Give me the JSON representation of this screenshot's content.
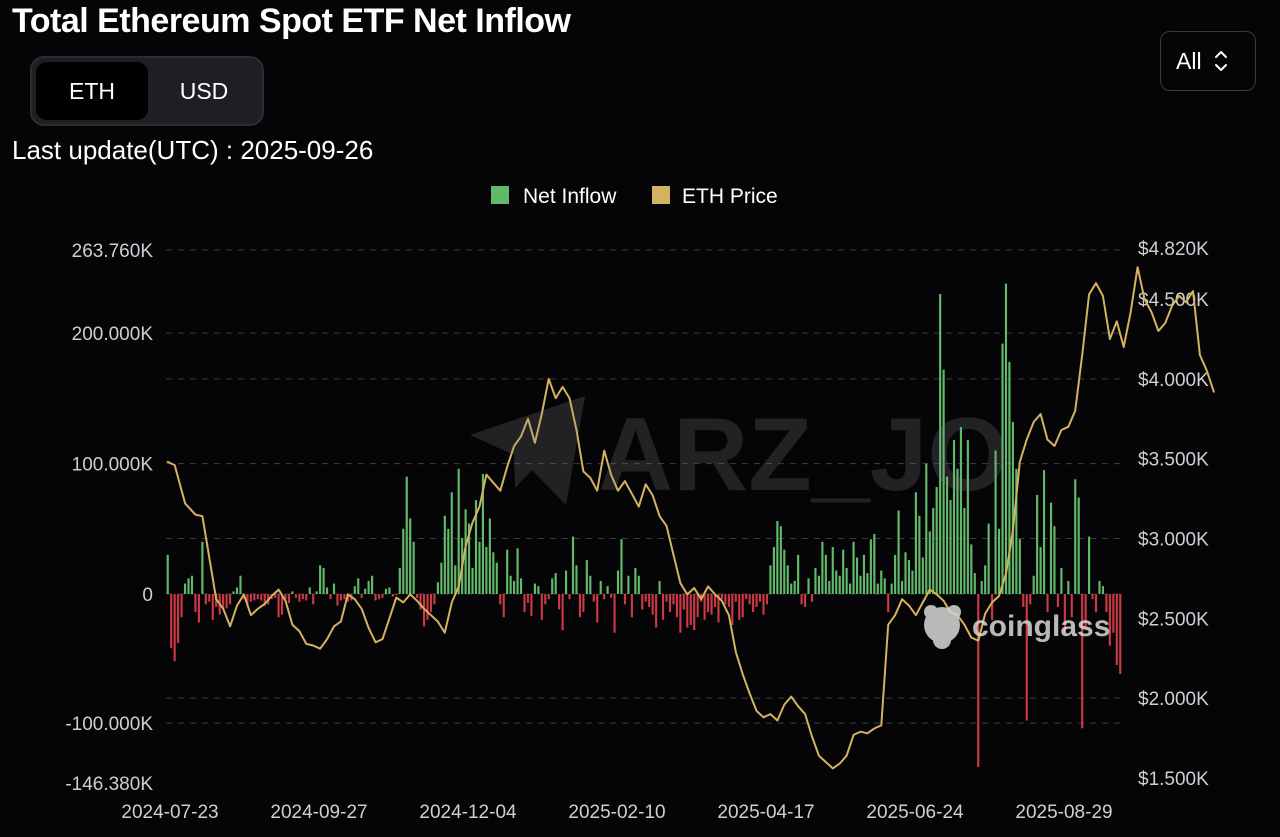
{
  "header": {
    "title": "Total Ethereum Spot ETF Net Inflow",
    "unit_options": [
      "ETH",
      "USD"
    ],
    "selected_unit": "ETH",
    "range_select": "All",
    "last_update": "Last update(UTC) : 2025-09-26"
  },
  "watermarks": {
    "center": "ARZ_JO",
    "brand": "coinglass"
  },
  "colors": {
    "background": "#050507",
    "inflow_positive": "#62b96a",
    "inflow_negative": "#cc3843",
    "price_line": "#d4b25f",
    "grid": "#3c3c40",
    "axis_text": "#cfcfd3"
  },
  "chart_data": {
    "type": "bar",
    "legend": [
      {
        "name": "Net Inflow",
        "color": "#62b96a"
      },
      {
        "name": "ETH Price",
        "color": "#d4b25f"
      }
    ],
    "legend_position": "top-center",
    "grid": "horizontal dashed",
    "y_left": {
      "ticks": [
        263760,
        200000,
        100000,
        0,
        -100000,
        -146380
      ],
      "tick_labels": [
        "263.760K",
        "200.000K",
        "100.000K",
        "0",
        "-100.000K",
        "-146.380K"
      ],
      "range": [
        -146380,
        263760
      ]
    },
    "y_right": {
      "ticks": [
        4820,
        4500,
        4000,
        3500,
        3000,
        2500,
        2000,
        1500
      ],
      "tick_labels": [
        "$4.820K",
        "$4.500K",
        "$4.000K",
        "$3.500K",
        "$3.000K",
        "$2.500K",
        "$2.000K",
        "$1.500K"
      ],
      "range": [
        1500,
        4820
      ]
    },
    "x_tick_labels": [
      "2024-07-23",
      "2024-09-27",
      "2024-12-04",
      "2025-02-10",
      "2025-04-17",
      "2025-06-24",
      "2025-08-29"
    ],
    "series": [
      {
        "name": "Net Inflow",
        "axis": "left",
        "note": "daily values in ETH, one bar per trading day",
        "values": [
          30000,
          -42000,
          -52000,
          -38000,
          -18000,
          8000,
          12000,
          14000,
          -14000,
          -22000,
          40000,
          -8000,
          -6000,
          -20000,
          -10000,
          -16000,
          -12000,
          -11000,
          -8000,
          2000,
          5000,
          14000,
          -4000,
          -9000,
          -6000,
          -5000,
          -4000,
          -5000,
          -9000,
          -8000,
          -4000,
          -3000,
          -18000,
          -16000,
          -4000,
          -7000,
          2000,
          -3000,
          -6000,
          -4000,
          -5000,
          5000,
          -8000,
          2000,
          22000,
          20000,
          5000,
          -4000,
          8000,
          -9000,
          -5000,
          -4000,
          -6000,
          -5000,
          6000,
          12000,
          -3000,
          4000,
          10000,
          14000,
          -5000,
          -4000,
          -3000,
          4000,
          5000,
          -2000,
          -1000,
          20000,
          50000,
          90000,
          58000,
          40000,
          -3000,
          -12000,
          -25000,
          -20000,
          -14000,
          -8000,
          9000,
          24000,
          60000,
          50000,
          78000,
          22000,
          96000,
          43000,
          65000,
          54000,
          20000,
          72000,
          40000,
          92000,
          36000,
          58000,
          32000,
          24000,
          -8000,
          -18000,
          34000,
          14000,
          10000,
          35000,
          12000,
          -14000,
          -7000,
          -17000,
          8000,
          6000,
          -20000,
          -8000,
          -4000,
          12000,
          16000,
          -12000,
          -28000,
          18000,
          -4000,
          44000,
          22000,
          -18000,
          -14000,
          26000,
          14000,
          -6000,
          -22000,
          10000,
          -4000,
          6000,
          -3000,
          -30000,
          18000,
          42000,
          -8000,
          14000,
          -18000,
          20000,
          14000,
          -12000,
          -6000,
          -10000,
          -16000,
          -26000,
          10000,
          -20000,
          -6000,
          -14000,
          -8000,
          -18000,
          -30000,
          -12000,
          -26000,
          -24000,
          -28000,
          -18000,
          -6000,
          -20000,
          -14000,
          -16000,
          -10000,
          -22000,
          -4000,
          -8000,
          -10000,
          -24000,
          -6000,
          -20000,
          -18000,
          -4000,
          -8000,
          -14000,
          -10000,
          -6000,
          -16000,
          -8000,
          22000,
          36000,
          56000,
          52000,
          34000,
          22000,
          8000,
          10000,
          30000,
          -8000,
          -10000,
          12000,
          -6000,
          20000,
          14000,
          40000,
          30000,
          10000,
          36000,
          18000,
          14000,
          34000,
          20000,
          8000,
          40000,
          28000,
          14000,
          30000,
          16000,
          42000,
          46000,
          8000,
          18000,
          12000,
          -14000,
          8000,
          30000,
          64000,
          10000,
          32000,
          26000,
          18000,
          78000,
          60000,
          28000,
          100000,
          48000,
          66000,
          82000,
          230000,
          172000,
          90000,
          72000,
          118000,
          96000,
          128000,
          66000,
          118000,
          38000,
          16000,
          -134000,
          10000,
          22000,
          54000,
          -20000,
          110000,
          50000,
          192000,
          238000,
          178000,
          132000,
          96000,
          42000,
          -10000,
          -98000,
          -8000,
          14000,
          76000,
          36000,
          95000,
          -14000,
          70000,
          52000,
          -10000,
          20000,
          -30000,
          10000,
          -18000,
          88000,
          74000,
          -104000,
          -26000,
          44000,
          -4000,
          -14000,
          10000,
          6000,
          -14000,
          -40000,
          -30000,
          -55000,
          -62000
        ]
      },
      {
        "name": "ETH Price",
        "axis": "right",
        "unit": "USD",
        "points": [
          [
            0,
            3480
          ],
          [
            2,
            3460
          ],
          [
            5,
            3220
          ],
          [
            8,
            3150
          ],
          [
            10,
            3140
          ],
          [
            12,
            2880
          ],
          [
            14,
            2620
          ],
          [
            16,
            2560
          ],
          [
            18,
            2450
          ],
          [
            20,
            2580
          ],
          [
            22,
            2650
          ],
          [
            24,
            2520
          ],
          [
            26,
            2560
          ],
          [
            28,
            2590
          ],
          [
            30,
            2640
          ],
          [
            32,
            2680
          ],
          [
            34,
            2610
          ],
          [
            36,
            2460
          ],
          [
            38,
            2420
          ],
          [
            40,
            2340
          ],
          [
            42,
            2330
          ],
          [
            44,
            2310
          ],
          [
            46,
            2370
          ],
          [
            48,
            2450
          ],
          [
            50,
            2480
          ],
          [
            52,
            2650
          ],
          [
            54,
            2620
          ],
          [
            56,
            2560
          ],
          [
            58,
            2440
          ],
          [
            60,
            2350
          ],
          [
            62,
            2370
          ],
          [
            64,
            2500
          ],
          [
            66,
            2630
          ],
          [
            68,
            2600
          ],
          [
            70,
            2650
          ],
          [
            72,
            2610
          ],
          [
            74,
            2560
          ],
          [
            76,
            2520
          ],
          [
            78,
            2480
          ],
          [
            80,
            2410
          ],
          [
            82,
            2600
          ],
          [
            84,
            2700
          ],
          [
            86,
            2950
          ],
          [
            88,
            3100
          ],
          [
            90,
            3200
          ],
          [
            92,
            3400
          ],
          [
            94,
            3350
          ],
          [
            96,
            3300
          ],
          [
            98,
            3450
          ],
          [
            100,
            3580
          ],
          [
            102,
            3640
          ],
          [
            104,
            3750
          ],
          [
            106,
            3600
          ],
          [
            108,
            3780
          ],
          [
            110,
            4000
          ],
          [
            112,
            3880
          ],
          [
            114,
            3950
          ],
          [
            116,
            3880
          ],
          [
            118,
            3680
          ],
          [
            120,
            3420
          ],
          [
            122,
            3380
          ],
          [
            124,
            3300
          ],
          [
            126,
            3550
          ],
          [
            128,
            3400
          ],
          [
            130,
            3300
          ],
          [
            132,
            3360
          ],
          [
            134,
            3280
          ],
          [
            136,
            3200
          ],
          [
            138,
            3340
          ],
          [
            140,
            3270
          ],
          [
            142,
            3140
          ],
          [
            144,
            3080
          ],
          [
            146,
            2900
          ],
          [
            148,
            2720
          ],
          [
            150,
            2650
          ],
          [
            152,
            2690
          ],
          [
            154,
            2620
          ],
          [
            156,
            2700
          ],
          [
            158,
            2650
          ],
          [
            160,
            2610
          ],
          [
            162,
            2520
          ],
          [
            164,
            2290
          ],
          [
            166,
            2150
          ],
          [
            168,
            2030
          ],
          [
            170,
            1920
          ],
          [
            172,
            1880
          ],
          [
            174,
            1900
          ],
          [
            176,
            1860
          ],
          [
            178,
            1960
          ],
          [
            180,
            2010
          ],
          [
            182,
            1950
          ],
          [
            184,
            1900
          ],
          [
            186,
            1760
          ],
          [
            188,
            1640
          ],
          [
            190,
            1600
          ],
          [
            192,
            1560
          ],
          [
            194,
            1590
          ],
          [
            196,
            1640
          ],
          [
            198,
            1770
          ],
          [
            200,
            1790
          ],
          [
            202,
            1780
          ],
          [
            204,
            1810
          ],
          [
            206,
            1830
          ],
          [
            208,
            2460
          ],
          [
            210,
            2520
          ],
          [
            212,
            2620
          ],
          [
            214,
            2580
          ],
          [
            216,
            2520
          ],
          [
            218,
            2600
          ],
          [
            220,
            2680
          ],
          [
            222,
            2650
          ],
          [
            224,
            2610
          ],
          [
            226,
            2540
          ],
          [
            228,
            2520
          ],
          [
            230,
            2460
          ],
          [
            232,
            2380
          ],
          [
            234,
            2360
          ],
          [
            236,
            2530
          ],
          [
            238,
            2600
          ],
          [
            240,
            2640
          ],
          [
            242,
            2780
          ],
          [
            244,
            3050
          ],
          [
            246,
            3480
          ],
          [
            248,
            3620
          ],
          [
            250,
            3730
          ],
          [
            252,
            3780
          ],
          [
            254,
            3620
          ],
          [
            256,
            3580
          ],
          [
            258,
            3680
          ],
          [
            260,
            3700
          ],
          [
            262,
            3800
          ],
          [
            264,
            4150
          ],
          [
            266,
            4530
          ],
          [
            268,
            4600
          ],
          [
            270,
            4520
          ],
          [
            272,
            4250
          ],
          [
            274,
            4360
          ],
          [
            276,
            4200
          ],
          [
            278,
            4420
          ],
          [
            280,
            4700
          ],
          [
            282,
            4500
          ],
          [
            284,
            4420
          ],
          [
            286,
            4300
          ],
          [
            288,
            4350
          ],
          [
            290,
            4460
          ],
          [
            292,
            4520
          ],
          [
            294,
            4480
          ],
          [
            296,
            4550
          ],
          [
            298,
            4150
          ],
          [
            300,
            4050
          ],
          [
            302,
            3920
          ]
        ]
      }
    ]
  }
}
